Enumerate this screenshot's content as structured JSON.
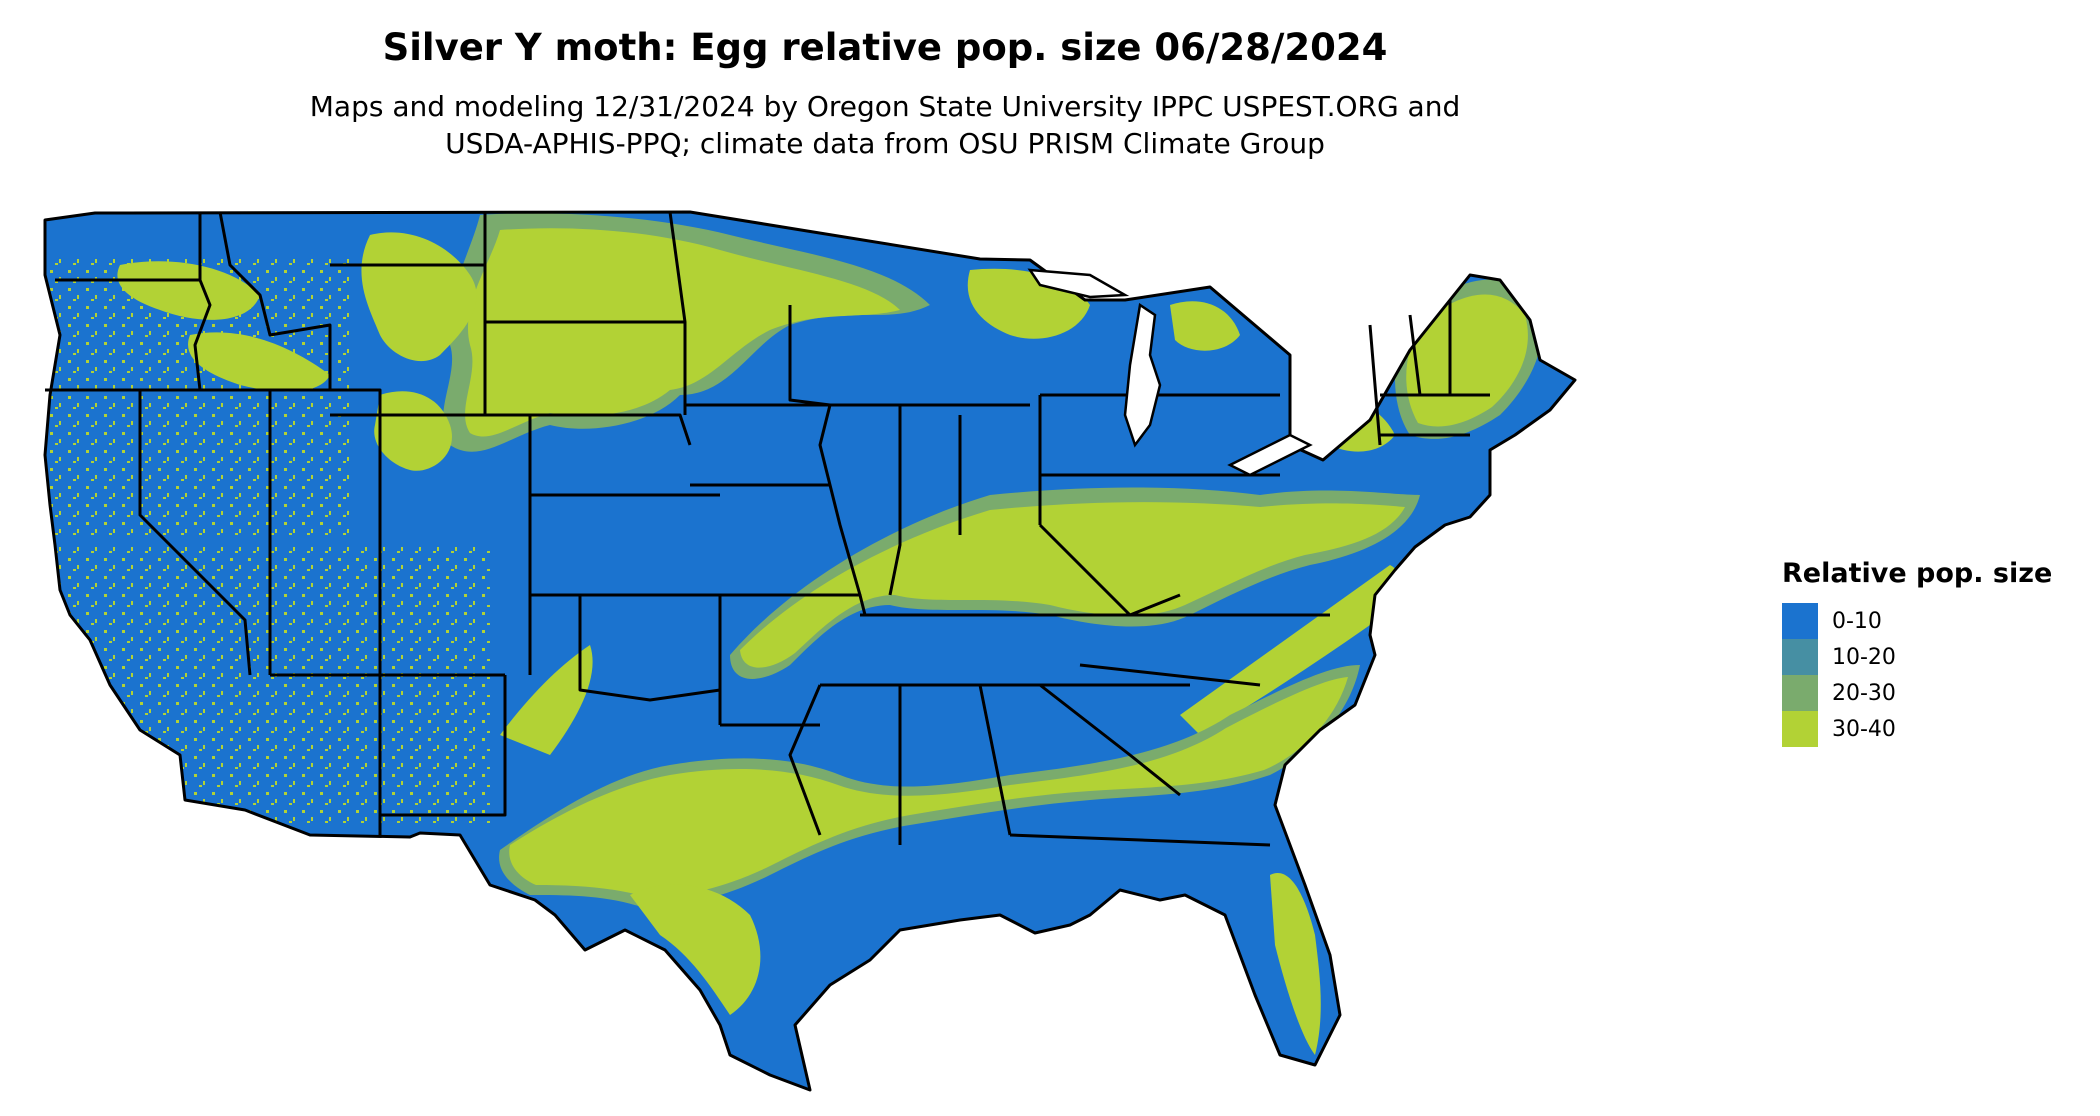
{
  "title": "Silver Y moth: Egg relative pop. size 06/28/2024",
  "subtitle_line1": "Maps and modeling 12/31/2024 by Oregon State University IPPC USPEST.ORG and",
  "subtitle_line2": "USDA-APHIS-PPQ; climate data from OSU PRISM Climate Group",
  "legend": {
    "title": "Relative pop. size",
    "items": [
      {
        "label": "0-10",
        "color": "#1b73cf"
      },
      {
        "label": "10-20",
        "color": "#468fa3"
      },
      {
        "label": "20-30",
        "color": "#7aab6d"
      },
      {
        "label": "30-40",
        "color": "#b2d235"
      }
    ]
  },
  "colors": {
    "background": "#ffffff",
    "border": "#000000"
  }
}
